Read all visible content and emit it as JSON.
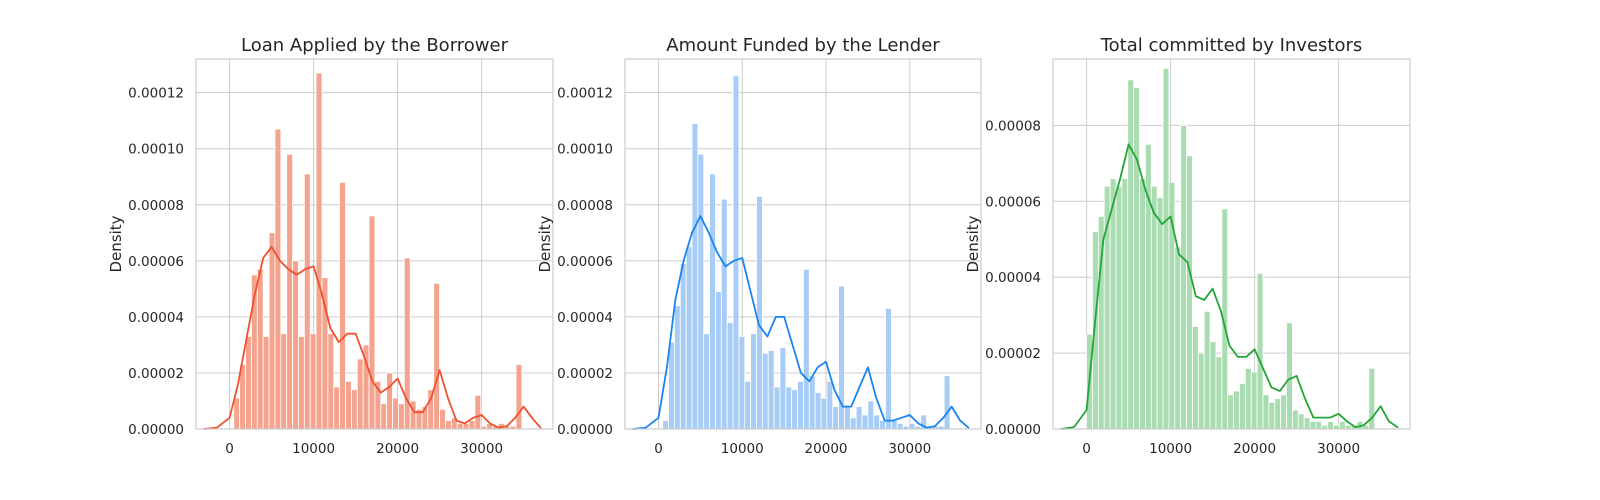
{
  "chart_data": [
    {
      "type": "bar",
      "title": "Loan Applied by the Borrower",
      "xlabel": "",
      "ylabel": "Density",
      "xlim": [
        -4000,
        38500
      ],
      "ylim": [
        0,
        0.000132
      ],
      "xticks": [
        0,
        10000,
        20000,
        30000
      ],
      "xtick_labels": [
        "0",
        "10000",
        "20000",
        "30000"
      ],
      "yticks": [
        0,
        2e-05,
        4e-05,
        6e-05,
        8e-05,
        0.0001,
        0.00012
      ],
      "ytick_labels": [
        "0.00000",
        "0.00002",
        "0.00004",
        "0.00006",
        "0.00008",
        "0.00010",
        "0.00012"
      ],
      "grid": true,
      "bar_color": "#f4a38e",
      "line_color": "#f0502d",
      "bin_start": 500,
      "bin_width": 700,
      "values": [
        1.1e-05,
        2.3e-05,
        3.3e-05,
        5.5e-05,
        5.7e-05,
        3.3e-05,
        7e-05,
        0.000107,
        3.4e-05,
        9.8e-05,
        6e-05,
        3.3e-05,
        9.1e-05,
        3.4e-05,
        0.000127,
        5.4e-05,
        3.4e-05,
        1.5e-05,
        8.8e-05,
        1.7e-05,
        1.4e-05,
        2.5e-05,
        3e-05,
        7.6e-05,
        1.7e-05,
        9e-06,
        2e-05,
        1.1e-05,
        9e-06,
        6.1e-05,
        1e-05,
        7e-06,
        8e-06,
        1.4e-05,
        5.2e-05,
        7e-06,
        3e-06,
        4e-06,
        2e-06,
        2e-06,
        3e-06,
        1.2e-05,
        1e-06,
        2e-06,
        1e-06,
        2e-06,
        1e-06,
        1e-06,
        2.3e-05
      ],
      "kde": {
        "x": [
          -3000,
          -1500,
          0,
          1000,
          2000,
          3000,
          4000,
          5000,
          6000,
          7000,
          8000,
          9000,
          10000,
          11000,
          12000,
          13000,
          14000,
          15000,
          16000,
          17000,
          18000,
          19000,
          20000,
          21000,
          22000,
          23000,
          24000,
          25000,
          26000,
          27000,
          28000,
          29000,
          30000,
          31000,
          32000,
          33000,
          34000,
          35000,
          36000,
          37000
        ],
        "y": [
          0,
          5e-07,
          4e-06,
          1.6e-05,
          3.2e-05,
          4.8e-05,
          6.1e-05,
          6.5e-05,
          6e-05,
          5.7e-05,
          5.5e-05,
          5.7e-05,
          5.8e-05,
          4.8e-05,
          3.6e-05,
          3.1e-05,
          3.4e-05,
          3.4e-05,
          2.6e-05,
          1.7e-05,
          1.3e-05,
          1.5e-05,
          1.8e-05,
          1.1e-05,
          6e-06,
          6e-06,
          1.1e-05,
          2.1e-05,
          1.1e-05,
          3e-06,
          2e-06,
          4e-06,
          5e-06,
          2e-06,
          5e-07,
          1e-06,
          4e-06,
          8e-06,
          4e-06,
          5e-07
        ]
      }
    },
    {
      "type": "bar",
      "title": "Amount Funded by the Lender",
      "xlabel": "",
      "ylabel": "Density",
      "xlim": [
        -4000,
        38500
      ],
      "ylim": [
        0,
        0.000132
      ],
      "xticks": [
        0,
        10000,
        20000,
        30000
      ],
      "xtick_labels": [
        "0",
        "10000",
        "20000",
        "30000"
      ],
      "yticks": [
        0,
        2e-05,
        4e-05,
        6e-05,
        8e-05,
        0.0001,
        0.00012
      ],
      "ytick_labels": [
        "0.00000",
        "0.00002",
        "0.00004",
        "0.00006",
        "0.00008",
        "0.00010",
        "0.00012"
      ],
      "grid": true,
      "bar_color": "#a7ccf5",
      "line_color": "#1a85f2",
      "bin_start": 500,
      "bin_width": 700,
      "values": [
        3e-06,
        3.1e-05,
        4.4e-05,
        5.9e-05,
        6.5e-05,
        0.000109,
        9.8e-05,
        3.4e-05,
        9.1e-05,
        4.9e-05,
        8.2e-05,
        3.8e-05,
        0.000126,
        3.3e-05,
        1.7e-05,
        3.4e-05,
        8.3e-05,
        2.7e-05,
        2.8e-05,
        1.5e-05,
        2.9e-05,
        1.5e-05,
        1.4e-05,
        1.7e-05,
        5.7e-05,
        1.9e-05,
        1.3e-05,
        1.1e-05,
        1.7e-05,
        8e-06,
        5.1e-05,
        8e-06,
        4e-06,
        8e-06,
        5e-06,
        1e-05,
        5e-06,
        3e-06,
        4.3e-05,
        3e-06,
        2e-06,
        1e-06,
        2e-06,
        1e-06,
        5e-06,
        1e-06,
        1e-06,
        1e-06,
        1.9e-05
      ],
      "kde": {
        "x": [
          -3000,
          -1500,
          0,
          1000,
          2000,
          3000,
          4000,
          5000,
          6000,
          7000,
          8000,
          9000,
          10000,
          11000,
          12000,
          13000,
          14000,
          15000,
          16000,
          17000,
          18000,
          19000,
          20000,
          21000,
          22000,
          23000,
          24000,
          25000,
          26000,
          27000,
          28000,
          29000,
          30000,
          31000,
          32000,
          33000,
          34000,
          35000,
          36000,
          37000
        ],
        "y": [
          0,
          5e-07,
          4e-06,
          2.2e-05,
          4.6e-05,
          6e-05,
          7e-05,
          7.6e-05,
          7e-05,
          6.3e-05,
          5.8e-05,
          6e-05,
          6.1e-05,
          4.9e-05,
          3.7e-05,
          3.3e-05,
          4e-05,
          4e-05,
          3e-05,
          2e-05,
          1.7e-05,
          2.2e-05,
          2.4e-05,
          1.4e-05,
          8e-06,
          8e-06,
          1.5e-05,
          2.2e-05,
          1.1e-05,
          3e-06,
          3e-06,
          4e-06,
          5e-06,
          2e-06,
          5e-07,
          1e-06,
          4e-06,
          8e-06,
          3e-06,
          5e-07
        ]
      }
    },
    {
      "type": "bar",
      "title": "Total committed by Investors",
      "xlabel": "",
      "ylabel": "Density",
      "xlim": [
        -4000,
        38500
      ],
      "ylim": [
        0,
        9.75e-05
      ],
      "xticks": [
        0,
        10000,
        20000,
        30000
      ],
      "xtick_labels": [
        "0",
        "10000",
        "20000",
        "30000"
      ],
      "yticks": [
        0,
        2e-05,
        4e-05,
        6e-05,
        8e-05
      ],
      "ytick_labels": [
        "0.00000",
        "0.00002",
        "0.00004",
        "0.00006",
        "0.00008"
      ],
      "grid": true,
      "bar_color": "#a9dcb0",
      "line_color": "#22a635",
      "bin_start": 0,
      "bin_width": 700,
      "values": [
        2.5e-05,
        5.2e-05,
        5.6e-05,
        6.4e-05,
        6.6e-05,
        6.4e-05,
        6.6e-05,
        9.2e-05,
        9e-05,
        6.6e-05,
        7.5e-05,
        6.4e-05,
        6.1e-05,
        9.5e-05,
        6.5e-05,
        4.8e-05,
        8e-05,
        7.2e-05,
        2.7e-05,
        2e-05,
        3.1e-05,
        2.3e-05,
        1.9e-05,
        5.8e-05,
        9e-06,
        1e-05,
        1.2e-05,
        1.6e-05,
        1.5e-05,
        4.1e-05,
        9e-06,
        7e-06,
        8e-06,
        9e-06,
        2.8e-05,
        5e-06,
        4e-06,
        3e-06,
        2e-06,
        2e-06,
        1e-06,
        2e-06,
        1e-06,
        2e-06,
        1e-06,
        1e-06,
        2e-06,
        1e-06,
        1.6e-05
      ],
      "kde": {
        "x": [
          -3000,
          -1500,
          0,
          1000,
          2000,
          3000,
          4000,
          5000,
          6000,
          7000,
          8000,
          9000,
          10000,
          11000,
          12000,
          13000,
          14000,
          15000,
          16000,
          17000,
          18000,
          19000,
          20000,
          21000,
          22000,
          23000,
          24000,
          25000,
          26000,
          27000,
          28000,
          29000,
          30000,
          31000,
          32000,
          33000,
          34000,
          35000,
          36000,
          37000
        ],
        "y": [
          0,
          5e-07,
          5e-06,
          2.8e-05,
          5e-05,
          5.8e-05,
          6.6e-05,
          7.5e-05,
          7.1e-05,
          6.3e-05,
          5.7e-05,
          5.4e-05,
          5.6e-05,
          4.6e-05,
          4.4e-05,
          3.5e-05,
          3.4e-05,
          3.7e-05,
          3.1e-05,
          2.2e-05,
          1.9e-05,
          1.9e-05,
          2.1e-05,
          1.6e-05,
          1.1e-05,
          1e-05,
          1.3e-05,
          1.4e-05,
          8e-06,
          3e-06,
          3e-06,
          3e-06,
          4e-06,
          2e-06,
          5e-07,
          1e-06,
          3e-06,
          6e-06,
          2e-06,
          5e-07
        ]
      }
    }
  ]
}
